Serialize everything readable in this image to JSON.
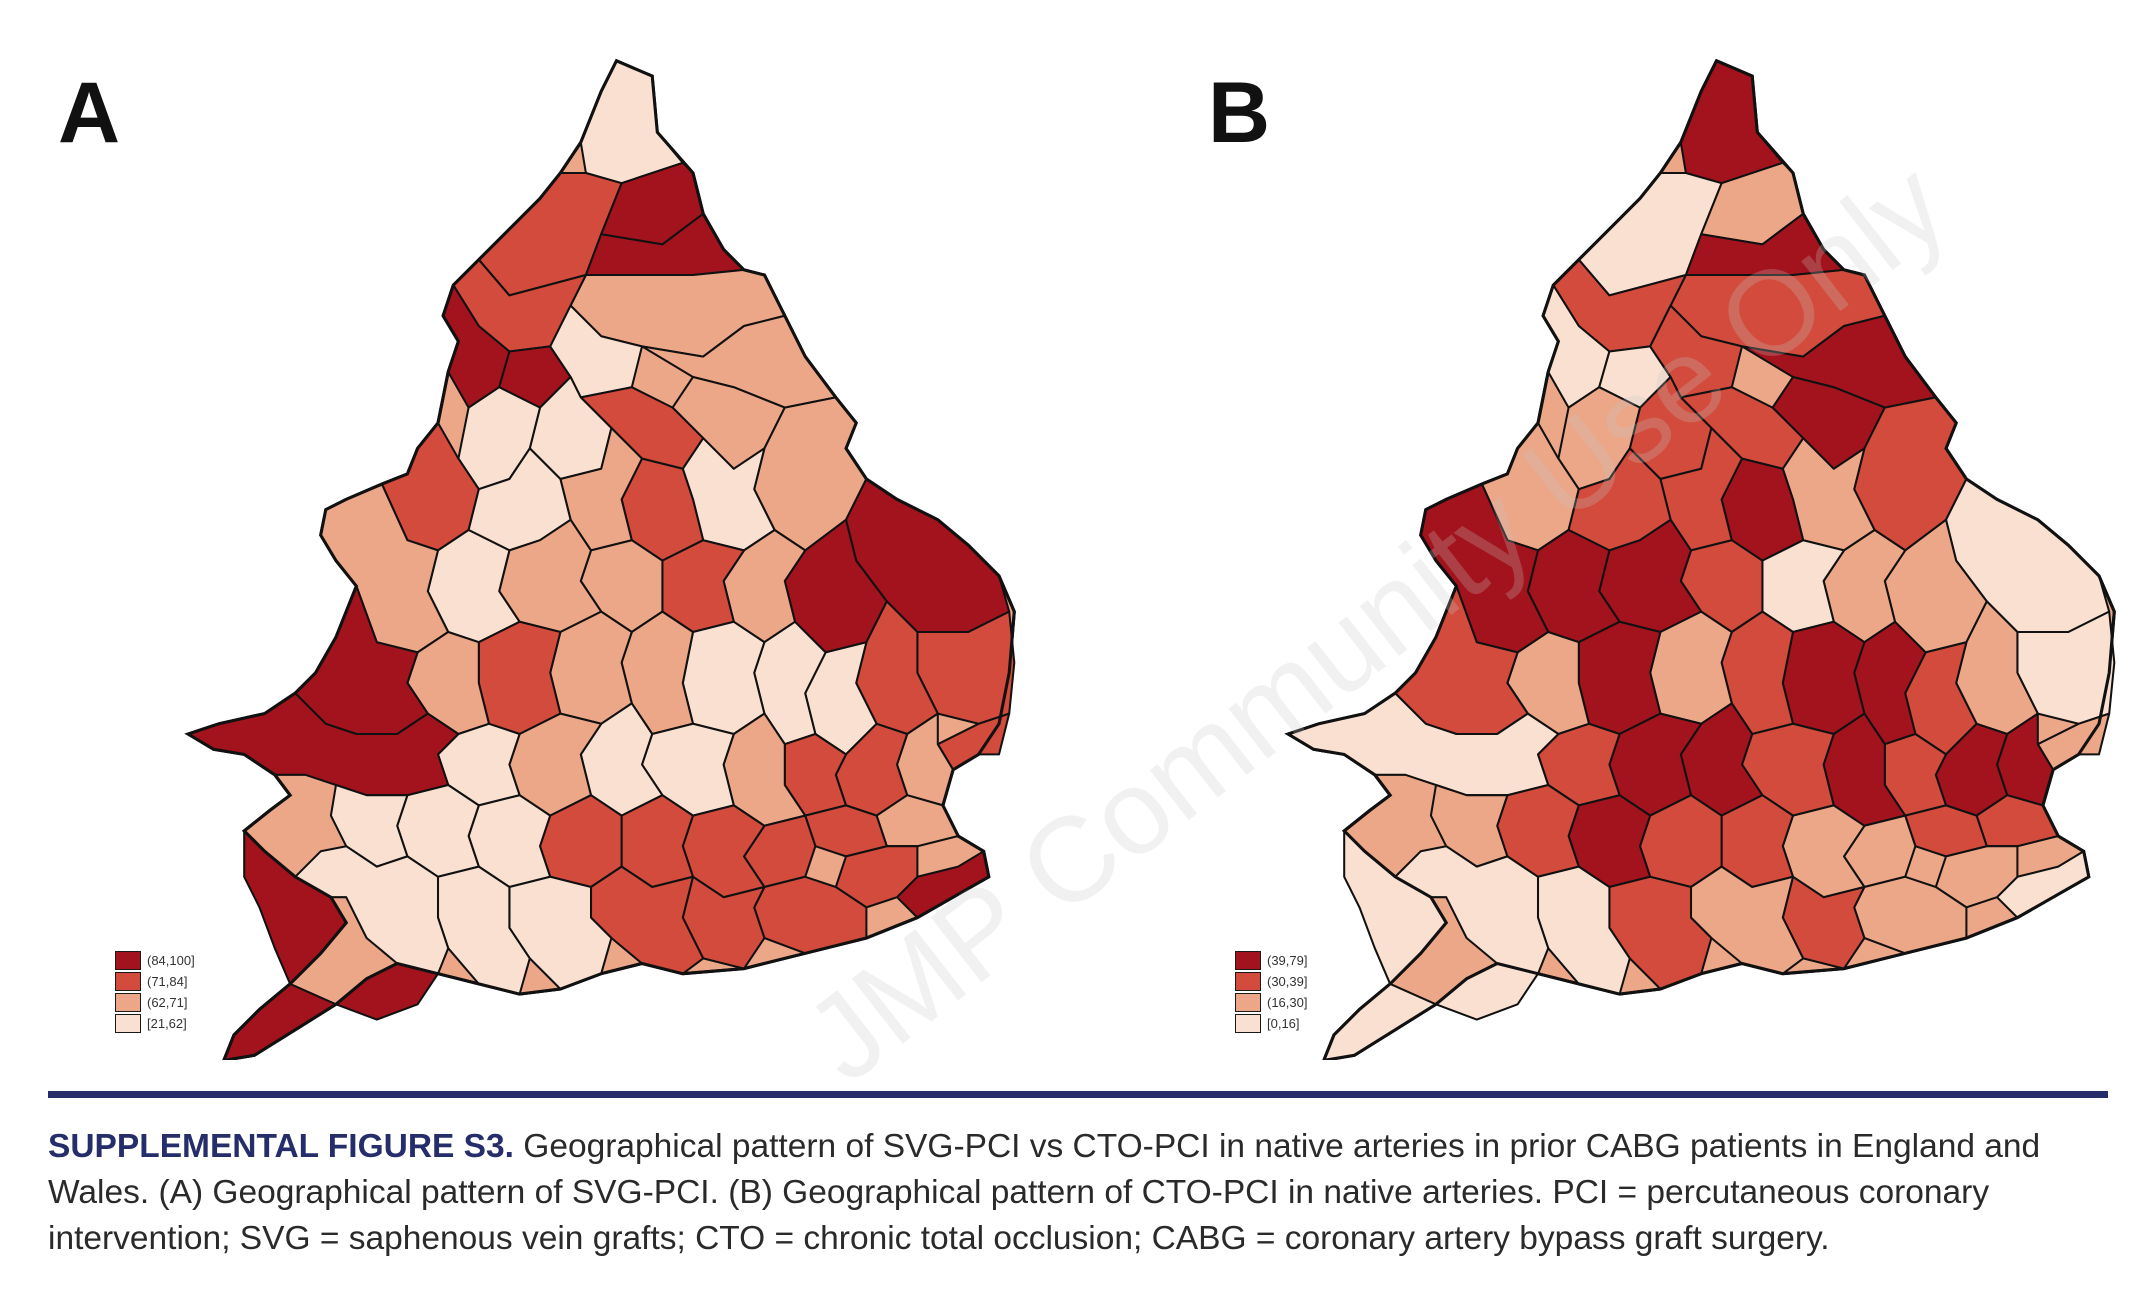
{
  "figure": {
    "caption_label": "SUPPLEMENTAL FIGURE S3.",
    "caption_text": " Geographical pattern of SVG-PCI vs CTO-PCI in native arteries in prior CABG patients in England and Wales. (A) Geographical pattern of SVG-PCI. (B) Geographical pattern of CTO-PCI in native arteries. PCI = percutaneous coronary intervention; SVG = saphenous vein grafts; CTO = chronic total occlusion; CABG = coronary artery bypass graft surgery.",
    "watermark": "JMP Community Use Only"
  },
  "colors": {
    "class_4": "#a3131d",
    "class_3": "#d24b3c",
    "class_2": "#eca688",
    "class_1": "#f9e0d1",
    "border": "#111111"
  },
  "panels": [
    {
      "letter": "A",
      "legend": [
        {
          "label": "(84,100]",
          "class": 4
        },
        {
          "label": "(71,84]",
          "class": 3
        },
        {
          "label": "(62,71]",
          "class": 2
        },
        {
          "label": "[21,62]",
          "class": 1
        }
      ]
    },
    {
      "letter": "B",
      "legend": [
        {
          "label": "(39,79]",
          "class": 4
        },
        {
          "label": "(30,39]",
          "class": 3
        },
        {
          "label": "(16,30]",
          "class": 2
        },
        {
          "label": "[0,16]",
          "class": 1
        }
      ]
    }
  ]
}
